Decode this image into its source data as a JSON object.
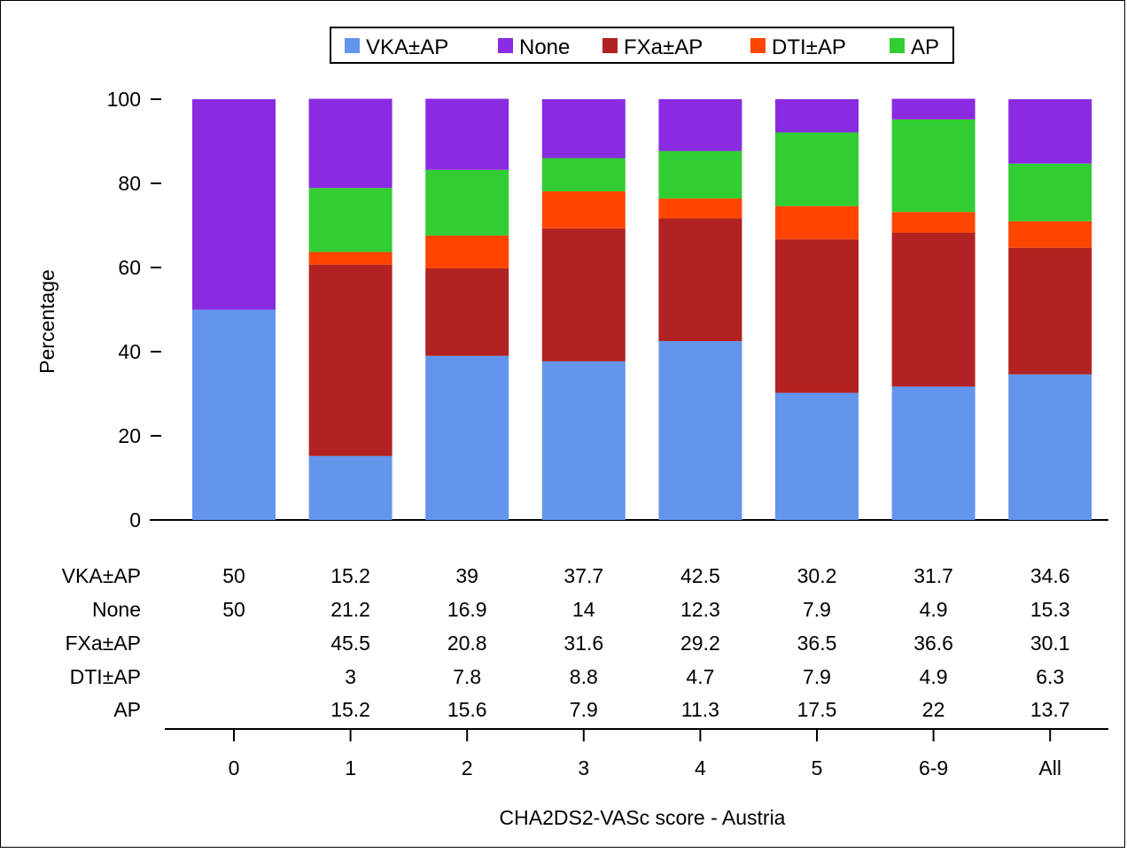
{
  "chart_data": {
    "type": "bar",
    "stacked": true,
    "title": "",
    "xlabel": "CHA2DS2-VASc score - Austria",
    "ylabel": "Percentage",
    "ylim": [
      0,
      100
    ],
    "yticks": [
      0,
      20,
      40,
      60,
      80,
      100
    ],
    "grid": false,
    "legend_position": "top-center",
    "categories": [
      "0",
      "1",
      "2",
      "3",
      "4",
      "5",
      "6-9",
      "All"
    ],
    "series": [
      {
        "name": "VKA±AP",
        "color": "#6495ED",
        "values": [
          50,
          15.2,
          39,
          37.7,
          42.5,
          30.2,
          31.7,
          34.6
        ],
        "labels": [
          "50",
          "15.2",
          "39",
          "37.7",
          "42.5",
          "30.2",
          "31.7",
          "34.6"
        ]
      },
      {
        "name": "FXa±AP",
        "color": "#B22222",
        "values": [
          0,
          45.5,
          20.8,
          31.6,
          29.2,
          36.5,
          36.6,
          30.1
        ],
        "labels": [
          "",
          "45.5",
          "20.8",
          "31.6",
          "29.2",
          "36.5",
          "36.6",
          "30.1"
        ]
      },
      {
        "name": "DTI±AP",
        "color": "#FF4500",
        "values": [
          0,
          3,
          7.8,
          8.8,
          4.7,
          7.9,
          4.9,
          6.3
        ],
        "labels": [
          "",
          "3",
          "7.8",
          "8.8",
          "4.7",
          "7.9",
          "4.9",
          "6.3"
        ]
      },
      {
        "name": "AP",
        "color": "#32CD32",
        "values": [
          0,
          15.2,
          15.6,
          7.9,
          11.3,
          17.5,
          22,
          13.7
        ],
        "labels": [
          "",
          "15.2",
          "15.6",
          "7.9",
          "11.3",
          "17.5",
          "22",
          "13.7"
        ]
      },
      {
        "name": "None",
        "color": "#8A2BE2",
        "values": [
          50,
          21.2,
          16.9,
          14,
          12.3,
          7.9,
          4.9,
          15.3
        ],
        "labels": [
          "50",
          "21.2",
          "16.9",
          "14",
          "12.3",
          "7.9",
          "4.9",
          "15.3"
        ]
      }
    ],
    "legend_order": [
      "VKA±AP",
      "None",
      "FXa±AP",
      "DTI±AP",
      "AP"
    ],
    "table_row_order": [
      "VKA±AP",
      "None",
      "FXa±AP",
      "DTI±AP",
      "AP"
    ]
  }
}
